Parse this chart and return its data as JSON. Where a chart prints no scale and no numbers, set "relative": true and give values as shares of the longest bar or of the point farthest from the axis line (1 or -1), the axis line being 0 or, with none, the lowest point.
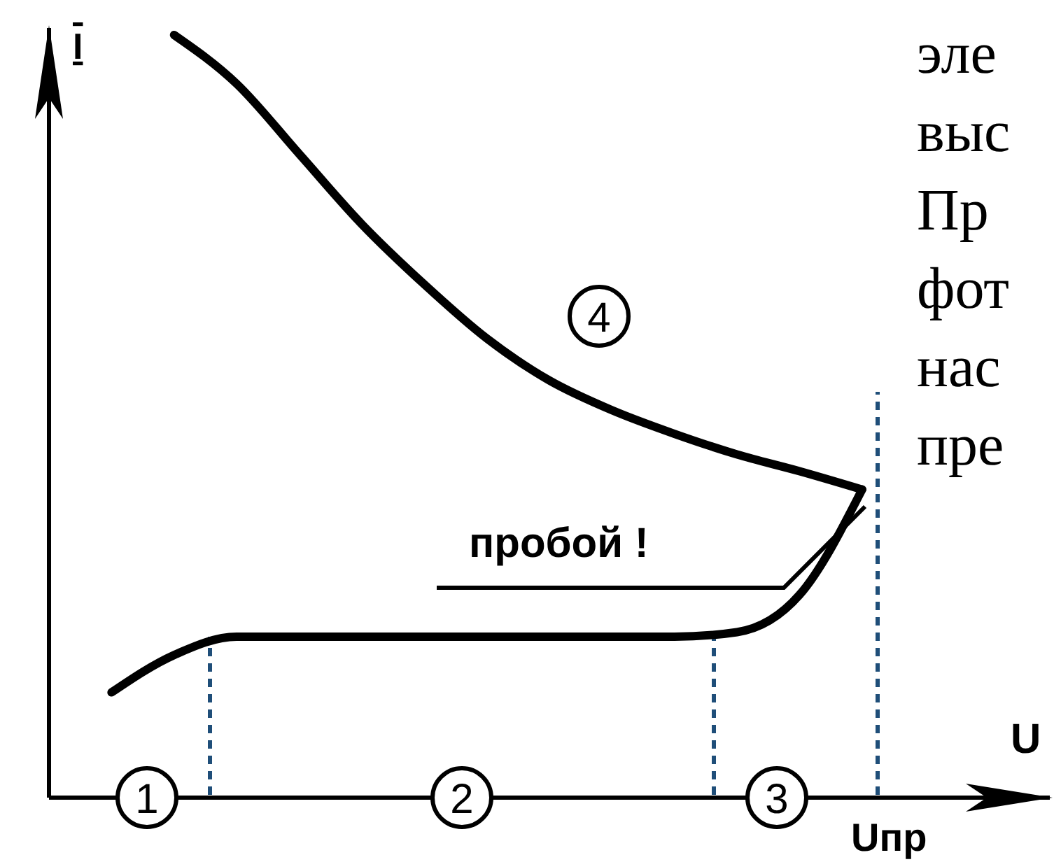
{
  "chart_data": {
    "type": "line",
    "relative": true,
    "xlabel": "U",
    "ylabel": "I",
    "line_style": "solid",
    "marker": "none",
    "categories": [
      null,
      null,
      null,
      null,
      null,
      null,
      null,
      null,
      null,
      null,
      null,
      null,
      null,
      null,
      null,
      null,
      null
    ],
    "series": [
      {
        "color": "#000000",
        "values": [
          null,
          0.138,
          0.187,
          0.211,
          0.211,
          0.211,
          0.211,
          0.211,
          0.211,
          0.211,
          0.211,
          0.217,
          0.266,
          0.404,
          null,
          null,
          null
        ]
      },
      {
        "color": "#000000",
        "values": [
          null,
          null,
          1,
          0.936,
          0.844,
          0.752,
          0.673,
          0.602,
          0.547,
          0.508,
          0.477,
          0.45,
          0.428,
          0.404,
          null,
          null,
          null
        ]
      }
    ],
    "annotations": [
      "1",
      "2",
      "3",
      "4",
      "пробой !",
      "Uпр",
      "эле",
      "выс",
      "Пр",
      "фот",
      "нас",
      "пре"
    ]
  }
}
